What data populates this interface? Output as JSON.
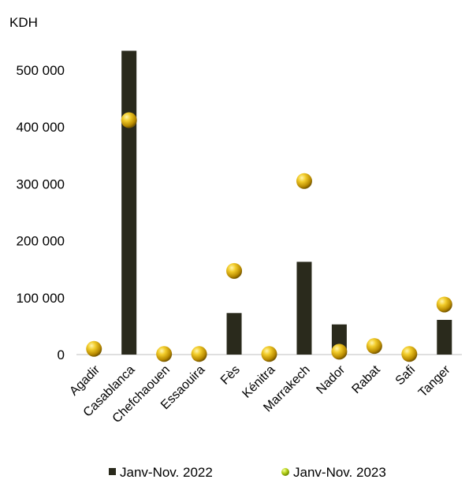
{
  "chart_data": {
    "type": "bar",
    "y_unit_label": "KDH",
    "categories": [
      "Agadir",
      "Casablanca",
      "Chefchaouen",
      "Essaouira",
      "Fès",
      "Kénitra",
      "Marrakech",
      "Nador",
      "Rabat",
      "Safi",
      "Tanger"
    ],
    "series": [
      {
        "name": "Janv-Nov. 2022",
        "mark": "bar",
        "color": "#2a2a1c",
        "values": [
          0,
          534000,
          0,
          0,
          73000,
          0,
          163000,
          53000,
          0,
          0,
          61000
        ]
      },
      {
        "name": "Janv-Nov. 2023",
        "mark": "marker",
        "color": "#d4ac0d",
        "values": [
          10000,
          412000,
          1000,
          1000,
          147000,
          1000,
          305000,
          5000,
          15000,
          1000,
          88000
        ]
      }
    ],
    "ylim": [
      0,
      540000
    ],
    "yticks": [
      0,
      100000,
      200000,
      300000,
      400000,
      500000
    ],
    "ytick_labels": [
      "0",
      "100 000",
      "200 000",
      "300 000",
      "400 000",
      "500 000"
    ],
    "grid": false,
    "legend_position": "bottom"
  }
}
